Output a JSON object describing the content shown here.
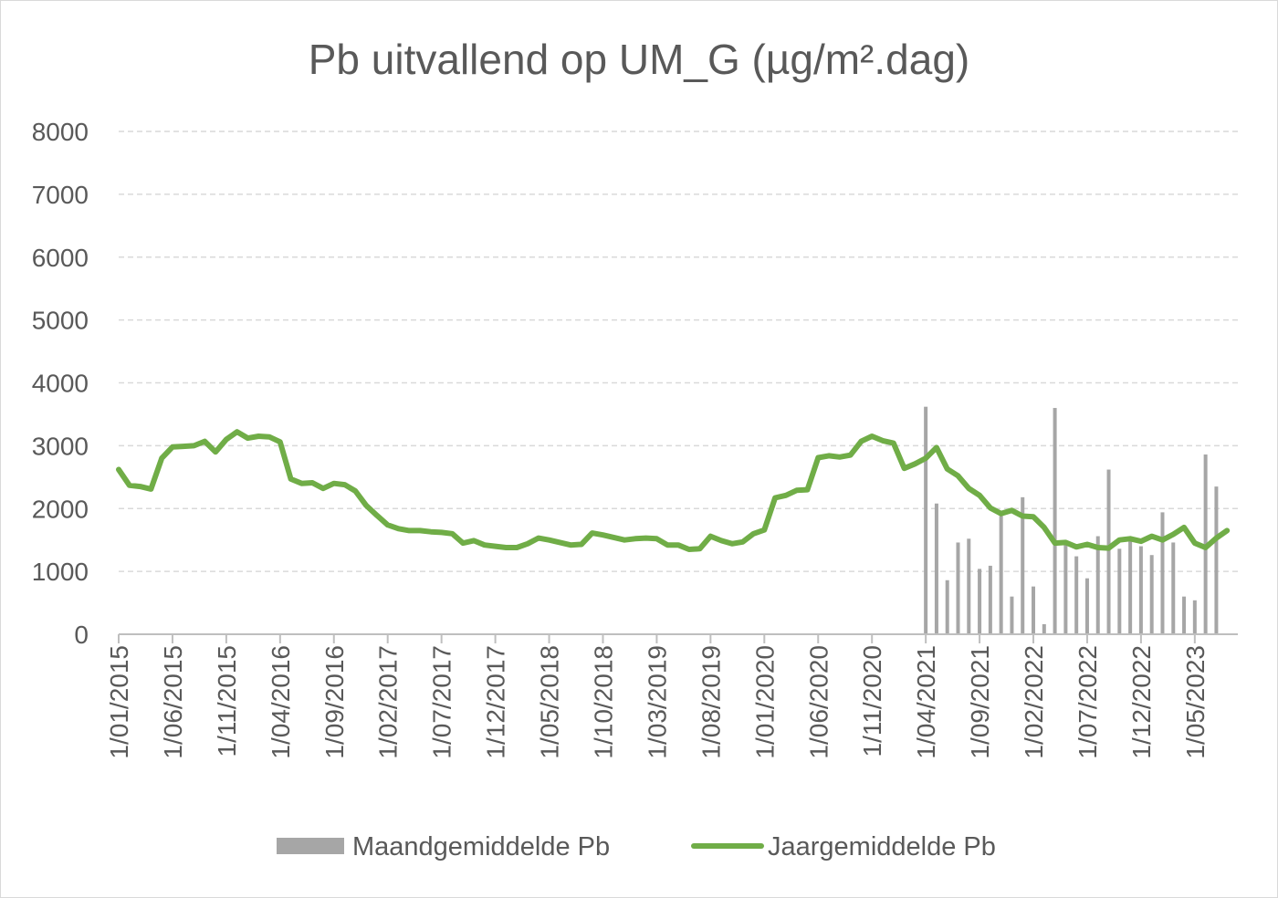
{
  "chart_data": {
    "type": "bar+line",
    "title": "Pb uitvallend op UM_G (µg/m².dag)",
    "ylim": [
      0,
      8000
    ],
    "y_ticks": [
      "0",
      "1000",
      "2000",
      "3000",
      "4000",
      "5000",
      "6000",
      "7000",
      "8000"
    ],
    "x_tick_labels": [
      "1/01/2015",
      "1/06/2015",
      "1/11/2015",
      "1/04/2016",
      "1/09/2016",
      "1/02/2017",
      "1/07/2017",
      "1/12/2017",
      "1/05/2018",
      "1/10/2018",
      "1/03/2019",
      "1/08/2019",
      "1/01/2020",
      "1/06/2020",
      "1/11/2020",
      "1/04/2021",
      "1/09/2021",
      "1/02/2022",
      "1/07/2022",
      "1/12/2022",
      "1/05/2023"
    ],
    "x_start": "2015-01",
    "x_end": "2023-09",
    "grid": true,
    "legend_position": "bottom",
    "series": [
      {
        "name": "Maandgemiddelde Pb",
        "type": "bar",
        "color": "#a6a6a6",
        "start": "2021-04",
        "values": [
          3620,
          2080,
          860,
          1460,
          1520,
          1040,
          1090,
          1880,
          600,
          2180,
          760,
          160,
          3600,
          1430,
          1240,
          890,
          1560,
          2620,
          1360,
          1480,
          1400,
          1260,
          1940,
          1460,
          600,
          540,
          2860,
          2350
        ]
      },
      {
        "name": "Jaargemiddelde Pb",
        "type": "line",
        "color": "#70ad47",
        "start": "2015-01",
        "values": [
          2620,
          2370,
          2350,
          2310,
          2800,
          2980,
          2990,
          3000,
          3070,
          2900,
          3100,
          3220,
          3120,
          3150,
          3140,
          3060,
          2470,
          2400,
          2410,
          2320,
          2400,
          2380,
          2280,
          2050,
          1890,
          1740,
          1680,
          1650,
          1650,
          1630,
          1620,
          1600,
          1450,
          1490,
          1420,
          1400,
          1380,
          1380,
          1440,
          1530,
          1500,
          1460,
          1420,
          1430,
          1610,
          1580,
          1540,
          1500,
          1520,
          1530,
          1520,
          1420,
          1420,
          1350,
          1360,
          1560,
          1490,
          1440,
          1470,
          1600,
          1660,
          2170,
          2210,
          2290,
          2300,
          2810,
          2840,
          2820,
          2850,
          3070,
          3150,
          3080,
          3040,
          2640,
          2710,
          2800,
          2970,
          2630,
          2520,
          2320,
          2210,
          2010,
          1920,
          1970,
          1880,
          1870,
          1700,
          1450,
          1460,
          1390,
          1430,
          1380,
          1370,
          1500,
          1520,
          1480,
          1560,
          1500,
          1590,
          1700,
          1450,
          1380,
          1530,
          1650
        ]
      }
    ]
  }
}
